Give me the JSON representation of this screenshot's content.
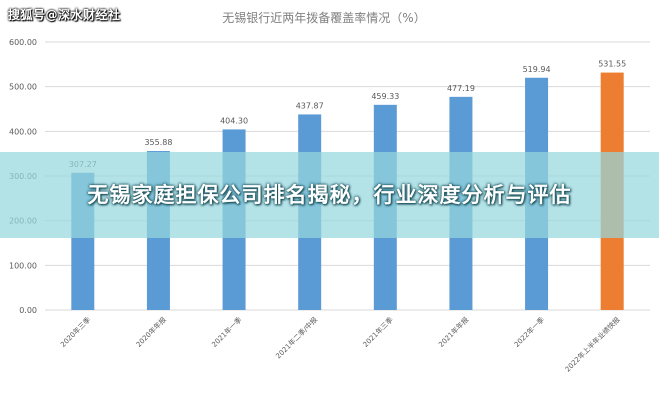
{
  "watermark": "搜狐号@深水财经社",
  "banner": {
    "text": "无锡家庭担保公司排名揭秘，行业深度分析与评估"
  },
  "colors": {
    "bar": "#5b9bd5",
    "highlight": "#ed7d31",
    "grid": "#d9d9d9",
    "axis_text": "#595959",
    "title_text": "#7f7f7f"
  },
  "chart_data": {
    "type": "bar",
    "title": "无锡银行近两年拨备覆盖率情况（%）",
    "xlabel": "",
    "ylabel": "",
    "ylim": [
      0,
      600
    ],
    "yticks": [
      "0.00",
      "100.00",
      "200.00",
      "300.00",
      "400.00",
      "500.00",
      "600.00"
    ],
    "grid": true,
    "legend": "none",
    "categories": [
      "2020年三季",
      "2020年年报",
      "2021年一季",
      "2021年二季/中报",
      "2021年三季",
      "2021年年报",
      "2022年一季",
      "2022年上半年业绩快报"
    ],
    "values": [
      307.27,
      355.88,
      404.3,
      437.87,
      459.33,
      477.19,
      519.94,
      531.55
    ],
    "value_labels": [
      "307.27",
      "355.88",
      "404.30",
      "437.87",
      "459.33",
      "477.19",
      "519.94",
      "531.55"
    ],
    "highlight_index": 7
  }
}
